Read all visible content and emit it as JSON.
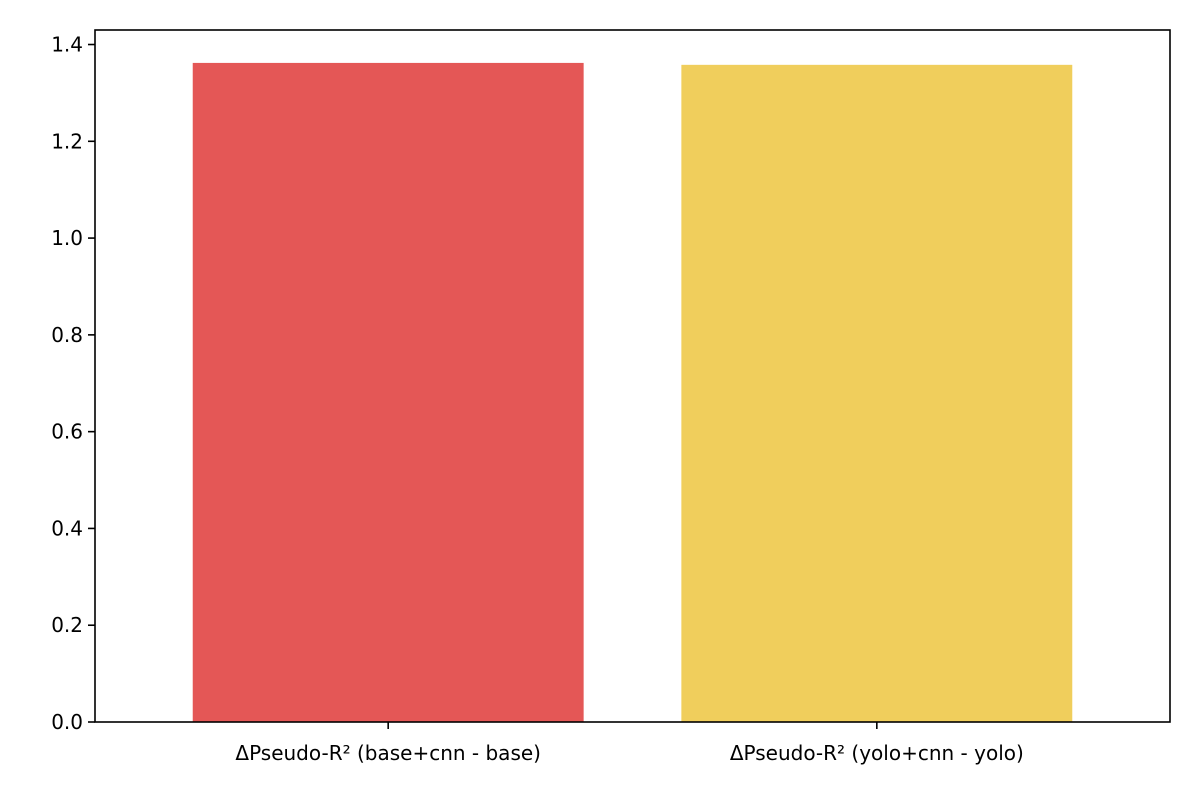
{
  "chart_data": {
    "type": "bar",
    "title": "",
    "xlabel": "",
    "ylabel": "",
    "categories": [
      "ΔPseudo-R² (base+cnn - base)",
      "ΔPseudo-R² (yolo+cnn - yolo)"
    ],
    "values": [
      1.362,
      1.358
    ],
    "bar_colors": [
      "#e45756",
      "#f0ce5c"
    ],
    "ylim": [
      0,
      1.43
    ],
    "yticks": [
      0.0,
      0.2,
      0.4,
      0.6,
      0.8,
      1.0,
      1.2,
      1.4
    ],
    "ytick_labels": [
      "0.0",
      "0.2",
      "0.4",
      "0.6",
      "0.8",
      "1.0",
      "1.2",
      "1.4"
    ],
    "grid": false,
    "legend": "none"
  }
}
